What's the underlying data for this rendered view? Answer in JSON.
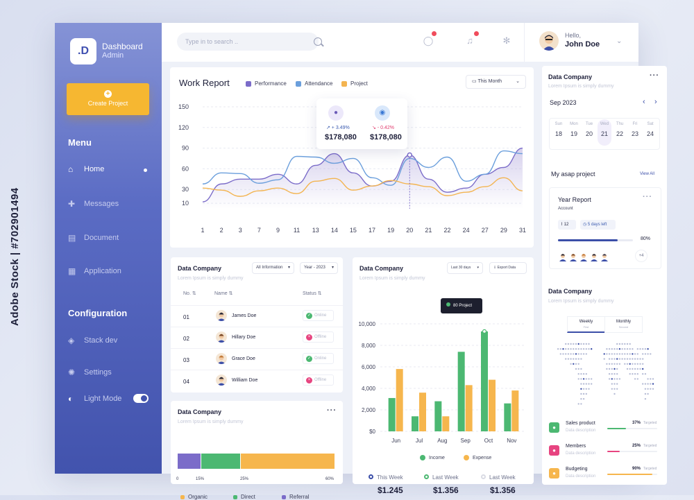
{
  "brand": {
    "logo": ".D",
    "title": "Dashboard",
    "subtitle": "Admin"
  },
  "sidebar": {
    "create_label": "Create Project",
    "menu_title": "Menu",
    "items": [
      {
        "label": "Home",
        "icon": "home-icon",
        "active": true
      },
      {
        "label": "Messages",
        "icon": "messages-icon"
      },
      {
        "label": "Document",
        "icon": "document-icon"
      },
      {
        "label": "Application",
        "icon": "application-icon"
      }
    ],
    "config_title": "Configuration",
    "config_items": [
      {
        "label": "Stack dev",
        "icon": "stack-icon"
      },
      {
        "label": "Settings",
        "icon": "settings-icon"
      },
      {
        "label": "Light Mode",
        "icon": "light-mode-icon",
        "toggle": true
      }
    ]
  },
  "header": {
    "search_placeholder": "Type in to search ..",
    "greeting": "Hello,",
    "user": "John Doe"
  },
  "work_report": {
    "title": "Work Report",
    "legend": [
      "Performance",
      "Attendance",
      "Project"
    ],
    "filter": "This Month",
    "tooltip": {
      "change1": "↗ + 3.49%",
      "value1": "$178,080",
      "change2": "↘ - 0.42%",
      "value2": "$178,080"
    },
    "chart_data": {
      "type": "line",
      "x": [
        "1",
        "2",
        "3",
        "7",
        "9",
        "11",
        "13",
        "14",
        "15",
        "17",
        "19",
        "20",
        "21",
        "22",
        "24",
        "27",
        "29",
        "31"
      ],
      "y_ticks": [
        150,
        120,
        90,
        60,
        30,
        10
      ],
      "ylim": [
        0,
        150
      ],
      "series": [
        {
          "name": "Performance",
          "color": "#7b6cc9",
          "values": [
            10,
            36,
            43,
            43,
            50,
            36,
            63,
            80,
            52,
            33,
            40,
            78,
            43,
            24,
            30,
            50,
            60,
            88
          ]
        },
        {
          "name": "Attendance",
          "color": "#6b9fdc",
          "values": [
            36,
            52,
            51,
            37,
            42,
            76,
            75,
            66,
            73,
            45,
            34,
            73,
            60,
            75,
            40,
            50,
            84,
            80
          ]
        },
        {
          "name": "Project",
          "color": "#f3b450",
          "values": [
            30,
            27,
            18,
            26,
            30,
            22,
            40,
            44,
            27,
            33,
            41,
            36,
            32,
            19,
            24,
            32,
            45,
            26
          ]
        }
      ]
    }
  },
  "table_card": {
    "title": "Data Company",
    "subtitle": "Lorem Ipsum is simply dummy",
    "filter1": "All Information",
    "filter2": "Year - 2023",
    "headers": [
      "No.",
      "Name",
      "Status"
    ],
    "rows": [
      {
        "no": "01",
        "name": "James Doe",
        "status": "Online",
        "ok": true
      },
      {
        "no": "02",
        "name": "Hillary Doe",
        "status": "Offline",
        "ok": false
      },
      {
        "no": "03",
        "name": "Grace Doe",
        "status": "Online",
        "ok": true
      },
      {
        "no": "04",
        "name": "William Doe",
        "status": "Offline",
        "ok": false
      }
    ]
  },
  "stacked_card": {
    "title": "Data Company",
    "subtitle": "Lorem Ipsum is simply dummy",
    "ticks": [
      "0",
      "15%",
      "25%",
      "60%"
    ],
    "legend": [
      "Organic",
      "Direct",
      "Referral"
    ],
    "chart_data": {
      "type": "bar",
      "categories": [
        "Referral",
        "Direct",
        "Organic"
      ],
      "values": [
        15,
        25,
        60
      ],
      "colors": [
        "#7b6cc9",
        "#4cb872",
        "#f6b64d"
      ]
    }
  },
  "bar_card": {
    "title": "Data Company",
    "subtitle": "Lorem Ipsum is simply dummy",
    "filter": "Last 30 days",
    "export_label": "Export Data",
    "tooltip": "80 Project",
    "legend": [
      "Income",
      "Expense"
    ],
    "chart_data": {
      "type": "bar",
      "categories": [
        "Jun",
        "Jul",
        "Aug",
        "Sep",
        "Oct",
        "Nov"
      ],
      "y_ticks": [
        "10,000",
        "8,000",
        "6,000",
        "4,000",
        "2,000",
        "$0"
      ],
      "ylim": [
        0,
        10000
      ],
      "series": [
        {
          "name": "Income",
          "color": "#4cb872",
          "values": [
            3100,
            1400,
            2800,
            7400,
            9300,
            2600
          ]
        },
        {
          "name": "Expense",
          "color": "#f6b64d",
          "values": [
            5800,
            3600,
            1400,
            4300,
            4800,
            3800
          ]
        }
      ]
    },
    "weeks": [
      {
        "label": "This Week",
        "value": "$1.245",
        "color": "#3b4ea8"
      },
      {
        "label": "Last Week",
        "value": "$1.356",
        "color": "#4cb872"
      },
      {
        "label": "Last Week",
        "value": "$1.356",
        "color": "#d9dbe4"
      }
    ]
  },
  "right_panel": {
    "title": "Data Company",
    "subtitle": "Lorem Ipsum is simply dummy",
    "month": "Sep 2023",
    "days": [
      {
        "d": "Sun",
        "n": "18"
      },
      {
        "d": "Mon",
        "n": "19"
      },
      {
        "d": "Tue",
        "n": "20"
      },
      {
        "d": "Wed",
        "n": "21",
        "sel": true
      },
      {
        "d": "Thu",
        "n": "22"
      },
      {
        "d": "Fri",
        "n": "23"
      },
      {
        "d": "Sat",
        "n": "24"
      }
    ],
    "asap_title": "My asap project",
    "view_all": "View All",
    "project": {
      "title": "Year Report",
      "sub": "Account",
      "count": "12",
      "days_left": "5 days left",
      "progress": 80,
      "progress_label": "80%",
      "more": "+4"
    },
    "map_title": "Data Company",
    "map_subtitle": "Lorem Ipsum is simply dummy",
    "tabs": [
      {
        "label": "Weekly",
        "sub": "First"
      },
      {
        "label": "Monthly",
        "sub": "Second"
      }
    ],
    "stats": [
      {
        "title": "Sales product",
        "desc": "Data description",
        "pct": "37%",
        "tag": "Targeted",
        "value": 37,
        "color": "#4cb872",
        "icon": "box-icon"
      },
      {
        "title": "Members",
        "desc": "Data description",
        "pct": "25%",
        "tag": "Targeted",
        "value": 25,
        "color": "#e74480",
        "icon": "members-icon"
      },
      {
        "title": "Budgeting",
        "desc": "Data description",
        "pct": "90%",
        "tag": "Targeted",
        "value": 90,
        "color": "#f6b64d",
        "icon": "budget-icon"
      }
    ]
  },
  "watermark": "Adobe Stock | #702901494"
}
